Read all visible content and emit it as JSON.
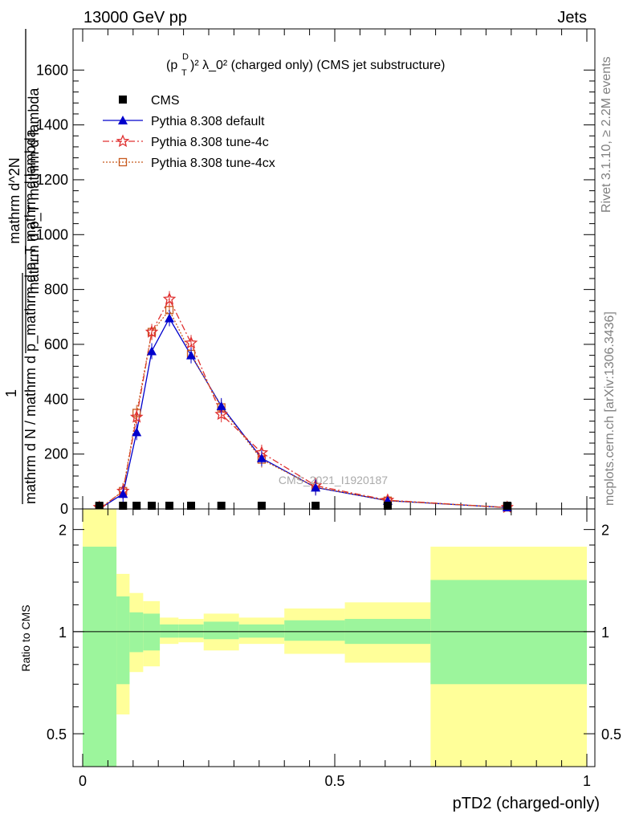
{
  "header": {
    "left": "13000 GeV pp",
    "right": "Jets"
  },
  "side_texts": {
    "top": "Rivet 3.1.10, ≥ 2.2M events",
    "bottom": "mcplots.cern.ch [arXiv:1306.3436]"
  },
  "chart_data": [
    {
      "type": "line",
      "title_main": "(p",
      "title_sup_D": "D",
      "title_sub_T": "T",
      "title_rest": ")² λ_0² (charged only) (CMS jet substructure)",
      "ylabel_numerator": "mathrm d^2N",
      "ylabel_denominator": "mathrm d N / mathrm d p_mathrm d p_T mathrm d lambda",
      "ylabel_num_1": "1",
      "ylabel_den_2": "mathrm d N / mathrm d p_mathrm d p_T mathrm d lambda",
      "ylabel_line_a": "mathrm d",
      "ylabel_line_b": "N",
      "ylabel_top_text": "mathrm d p_T mathrm d lambda",
      "ylim": [
        0,
        1750
      ],
      "xlim": [
        -0.02,
        1.0
      ],
      "yticks": [
        0,
        200,
        400,
        600,
        800,
        1000,
        1200,
        1400,
        1600
      ],
      "yticklabels": [
        "0",
        "200",
        "400",
        "600",
        "800",
        "1000",
        "1200",
        "1400",
        "1600"
      ],
      "watermark": "CMS_2021_I1920187",
      "legend": [
        {
          "label": "CMS",
          "color": "#000000",
          "marker": "square-filled"
        },
        {
          "label": "Pythia 8.308 default",
          "color": "#0000cc",
          "marker": "triangle-filled"
        },
        {
          "label": "Pythia 8.308 tune-4c",
          "color": "#e03030",
          "marker": "star"
        },
        {
          "label": "Pythia 8.308 tune-4cx",
          "color": "#c85a1e",
          "marker": "square-open"
        }
      ],
      "series": [
        {
          "name": "CMS",
          "x": [
            0.033,
            0.08,
            0.107,
            0.137,
            0.172,
            0.215,
            0.275,
            0.355,
            0.462,
            0.605,
            0.842
          ],
          "y": [
            0.5,
            2.5,
            3.0,
            3.3,
            3.7,
            3.5,
            3.0,
            2.2,
            1.2,
            0.4,
            0.1
          ]
        },
        {
          "name": "Pythia 8.308 default",
          "x": [
            0.033,
            0.08,
            0.107,
            0.137,
            0.172,
            0.215,
            0.275,
            0.355,
            0.462,
            0.605,
            0.842
          ],
          "y": [
            0,
            55,
            280,
            575,
            695,
            560,
            375,
            185,
            78,
            30,
            5
          ]
        },
        {
          "name": "Pythia 8.308 tune-4c",
          "x": [
            0.033,
            0.08,
            0.107,
            0.137,
            0.172,
            0.215,
            0.275,
            0.355,
            0.462,
            0.605,
            0.842
          ],
          "y": [
            0,
            65,
            335,
            645,
            765,
            605,
            345,
            205,
            85,
            32,
            5
          ]
        },
        {
          "name": "Pythia 8.308 tune-4cx",
          "x": [
            0.033,
            0.08,
            0.107,
            0.137,
            0.172,
            0.215,
            0.275,
            0.355,
            0.462,
            0.605,
            0.842
          ],
          "y": [
            0,
            65,
            350,
            645,
            725,
            565,
            370,
            180,
            80,
            30,
            5
          ]
        }
      ]
    },
    {
      "type": "area",
      "ylabel": "Ratio to CMS",
      "xlabel": "pTD2 (charged-only)",
      "xlim": [
        -0.02,
        1.0
      ],
      "ylim": [
        0.4,
        2.3
      ],
      "log_y": true,
      "yticks": [
        0.5,
        1,
        2
      ],
      "yticklabels": [
        "0.5",
        "1",
        "2"
      ],
      "xticks": [
        0,
        0.5,
        1
      ],
      "xticklabels": [
        "0",
        "0.5",
        "1"
      ],
      "reference_line": 1,
      "bands": [
        {
          "x0": 0.0,
          "x1": 0.067,
          "inner": [
            0.2,
            1.78
          ],
          "outer": [
            0.2,
            2.3
          ]
        },
        {
          "x0": 0.067,
          "x1": 0.093,
          "inner": [
            0.7,
            1.27
          ],
          "outer": [
            0.57,
            1.48
          ]
        },
        {
          "x0": 0.093,
          "x1": 0.12,
          "inner": [
            0.87,
            1.14
          ],
          "outer": [
            0.76,
            1.3
          ]
        },
        {
          "x0": 0.12,
          "x1": 0.153,
          "inner": [
            0.88,
            1.13
          ],
          "outer": [
            0.79,
            1.23
          ]
        },
        {
          "x0": 0.153,
          "x1": 0.19,
          "inner": [
            0.96,
            1.05
          ],
          "outer": [
            0.92,
            1.1
          ]
        },
        {
          "x0": 0.19,
          "x1": 0.24,
          "inner": [
            0.96,
            1.05
          ],
          "outer": [
            0.93,
            1.09
          ]
        },
        {
          "x0": 0.24,
          "x1": 0.31,
          "inner": [
            0.95,
            1.07
          ],
          "outer": [
            0.88,
            1.13
          ]
        },
        {
          "x0": 0.31,
          "x1": 0.4,
          "inner": [
            0.96,
            1.05
          ],
          "outer": [
            0.92,
            1.1
          ]
        },
        {
          "x0": 0.4,
          "x1": 0.52,
          "inner": [
            0.94,
            1.08
          ],
          "outer": [
            0.86,
            1.17
          ]
        },
        {
          "x0": 0.52,
          "x1": 0.69,
          "inner": [
            0.92,
            1.09
          ],
          "outer": [
            0.81,
            1.22
          ]
        },
        {
          "x0": 0.69,
          "x1": 1.0,
          "inner": [
            0.7,
            1.42
          ],
          "outer": [
            0.2,
            1.78
          ]
        }
      ],
      "colors": {
        "inner": "#9cf59c",
        "outer": "#ffff99"
      }
    }
  ]
}
